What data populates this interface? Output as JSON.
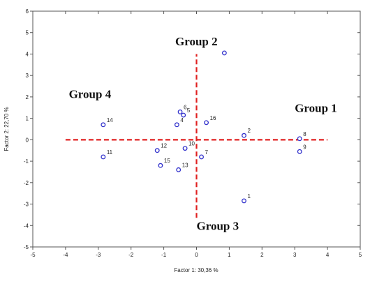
{
  "chart_data": {
    "type": "scatter",
    "title": "",
    "xlabel": "Factor 1: 30,36 %",
    "ylabel": "Factor 2: 22,70 %",
    "xlim": [
      -5,
      5
    ],
    "ylim": [
      -5,
      6
    ],
    "xticks": [
      "-5",
      "-4",
      "-3",
      "-2",
      "-1",
      "0",
      "1",
      "2",
      "3",
      "4",
      "5"
    ],
    "yticks": [
      "-5",
      "-4",
      "-3",
      "-2",
      "-1",
      "0",
      "1",
      "2",
      "3",
      "4",
      "5",
      "6"
    ],
    "grid": false,
    "points": [
      {
        "label": "1",
        "x": 1.45,
        "y": -2.85
      },
      {
        "label": "2",
        "x": 1.45,
        "y": 0.2
      },
      {
        "label": "3",
        "x": 0.85,
        "y": 4.05
      },
      {
        "label": "4",
        "x": -0.6,
        "y": 0.7
      },
      {
        "label": "5",
        "x": -0.4,
        "y": 1.15
      },
      {
        "label": "6",
        "x": -0.5,
        "y": 1.3
      },
      {
        "label": "7",
        "x": 0.15,
        "y": -0.8
      },
      {
        "label": "8",
        "x": 3.15,
        "y": 0.05
      },
      {
        "label": "9",
        "x": 3.15,
        "y": -0.55
      },
      {
        "label": "10",
        "x": -0.35,
        "y": -0.4
      },
      {
        "label": "11",
        "x": -2.85,
        "y": -0.8
      },
      {
        "label": "12",
        "x": -1.2,
        "y": -0.5
      },
      {
        "label": "13",
        "x": -0.55,
        "y": -1.4
      },
      {
        "label": "14",
        "x": -2.85,
        "y": 0.7
      },
      {
        "label": "15",
        "x": -1.1,
        "y": -1.2
      },
      {
        "label": "16",
        "x": 0.3,
        "y": 0.8
      }
    ],
    "point_color": "#3333cc",
    "reference_lines": {
      "horizontal": {
        "y": 0,
        "x_from": -4,
        "x_to": 4
      },
      "vertical": {
        "x": 0,
        "y_from": -4,
        "y_to": 4
      },
      "color": "#e02020",
      "style": "dashed"
    },
    "annotations": [
      {
        "text": "Group 2",
        "x": -0.65,
        "y": 4.4
      },
      {
        "text": "Group 4",
        "x": -3.9,
        "y": 1.95
      },
      {
        "text": "Group 1",
        "x": 3.0,
        "y": 1.3
      },
      {
        "text": "Group 3",
        "x": 0.0,
        "y": -4.2
      }
    ]
  }
}
